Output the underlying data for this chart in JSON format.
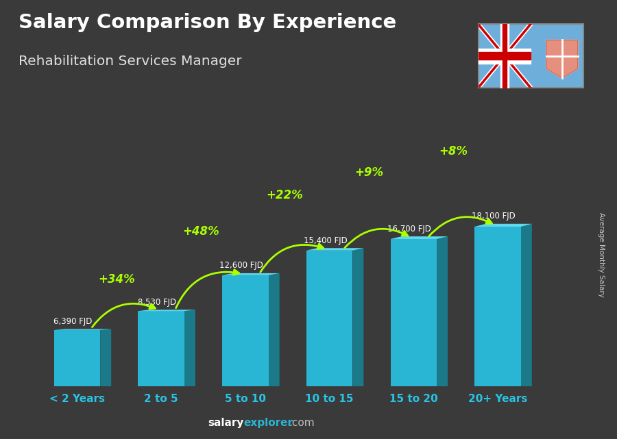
{
  "title": "Salary Comparison By Experience",
  "subtitle": "Rehabilitation Services Manager",
  "categories": [
    "< 2 Years",
    "2 to 5",
    "5 to 10",
    "10 to 15",
    "15 to 20",
    "20+ Years"
  ],
  "values": [
    6390,
    8530,
    12600,
    15400,
    16700,
    18100
  ],
  "value_labels": [
    "6,390 FJD",
    "8,530 FJD",
    "12,600 FJD",
    "15,400 FJD",
    "16,700 FJD",
    "18,100 FJD"
  ],
  "pct_changes": [
    "+34%",
    "+48%",
    "+22%",
    "+9%",
    "+8%"
  ],
  "bar_color_face": "#29b6d4",
  "bar_color_side": "#1a7a8a",
  "bar_color_top": "#5fd8ec",
  "bg_color": "#3a3a3a",
  "title_color": "#ffffff",
  "subtitle_color": "#e0e0e0",
  "label_color": "#ffffff",
  "tick_label_color": "#29c5e6",
  "pct_color": "#aaff00",
  "ylabel": "Average Monthly Salary",
  "footer_bold": "salary",
  "footer_cyan": "explorer",
  "footer_rest": ".com",
  "footer_color_bold": "#ffffff",
  "footer_color_cyan": "#29b6d4",
  "footer_color_rest": "#c0c0c0"
}
